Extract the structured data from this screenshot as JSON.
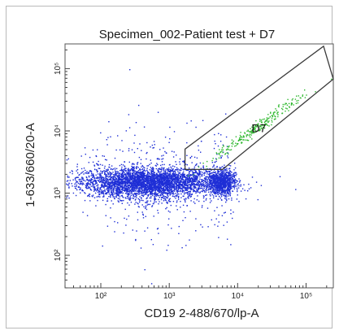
{
  "chart_data": {
    "type": "scatter",
    "title": "Specimen_002-Patient test + D7",
    "xlabel": "CD19 2-488/670/lp-A",
    "ylabel": "1-633/660/20-A",
    "x_scale": "log",
    "y_scale": "log",
    "xlim": [
      30,
      250000
    ],
    "ylim": [
      30,
      250000
    ],
    "x_ticks": [
      {
        "value": 100,
        "label": "10²"
      },
      {
        "value": 1000,
        "label": "10³"
      },
      {
        "value": 10000,
        "label": "10⁴"
      },
      {
        "value": 100000,
        "label": "10⁵"
      }
    ],
    "y_ticks": [
      {
        "value": 100,
        "label": "10²"
      },
      {
        "value": 1000,
        "label": "10³"
      },
      {
        "value": 10000,
        "label": "10⁴"
      },
      {
        "value": 100000,
        "label": "10⁵"
      }
    ],
    "grid": false,
    "gate": {
      "name": "D7",
      "polygon": [
        [
          1700,
          5100
        ],
        [
          1700,
          2400
        ],
        [
          6000,
          2400
        ],
        [
          250000,
          68000
        ],
        [
          180000,
          230000
        ]
      ]
    },
    "populations": [
      {
        "name": "main",
        "color": "#1f2fd6",
        "center": [
          500,
          1500
        ],
        "spread": [
          0.5,
          0.12
        ],
        "count": 4200
      },
      {
        "name": "secondary",
        "color": "#1f2fd6",
        "center": [
          5700,
          1500
        ],
        "spread": [
          0.1,
          0.1
        ],
        "count": 900
      },
      {
        "name": "gated",
        "color": "#2fb82f",
        "center": [
          20000,
          12000
        ],
        "spread": [
          0.35,
          0.05
        ],
        "count": 260
      }
    ],
    "colors": {
      "ungated": "#1f2fd6",
      "gated": "#2fb82f",
      "gate_line": "#3a3a3a"
    }
  }
}
